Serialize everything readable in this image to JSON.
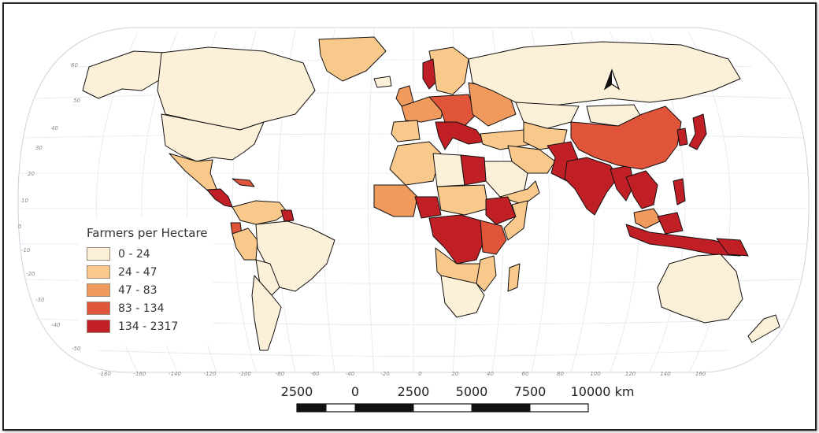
{
  "legend": {
    "title": "Farmers per Hectare",
    "classes": [
      {
        "label": "0 - 24",
        "color": "#fdf0d8"
      },
      {
        "label": "24 - 47",
        "color": "#f9c98c"
      },
      {
        "label": "47 - 83",
        "color": "#f19a5e"
      },
      {
        "label": "83 - 134",
        "color": "#e0553a"
      },
      {
        "label": "134 - 2317",
        "color": "#bf1f25"
      }
    ]
  },
  "scale_bar": {
    "labels": [
      "2500",
      "0",
      "2500",
      "5000",
      "7500",
      "10000 km"
    ]
  },
  "graticule": {
    "longitude_labels": [
      "-180",
      "-160",
      "-140",
      "-120",
      "-100",
      "-80",
      "-60",
      "-40",
      "-20",
      "0",
      "20",
      "40",
      "60",
      "80",
      "100",
      "120",
      "140",
      "160"
    ],
    "latitude_labels": [
      "60",
      "50",
      "40",
      "30",
      "20",
      "10",
      "0",
      "-10",
      "-20",
      "-30",
      "-40",
      "-50"
    ]
  },
  "north_arrow_icon": "north-arrow-icon",
  "colors": {
    "ocean": "#ffffff",
    "graticule": "#dde3ec",
    "border": "#111111"
  }
}
